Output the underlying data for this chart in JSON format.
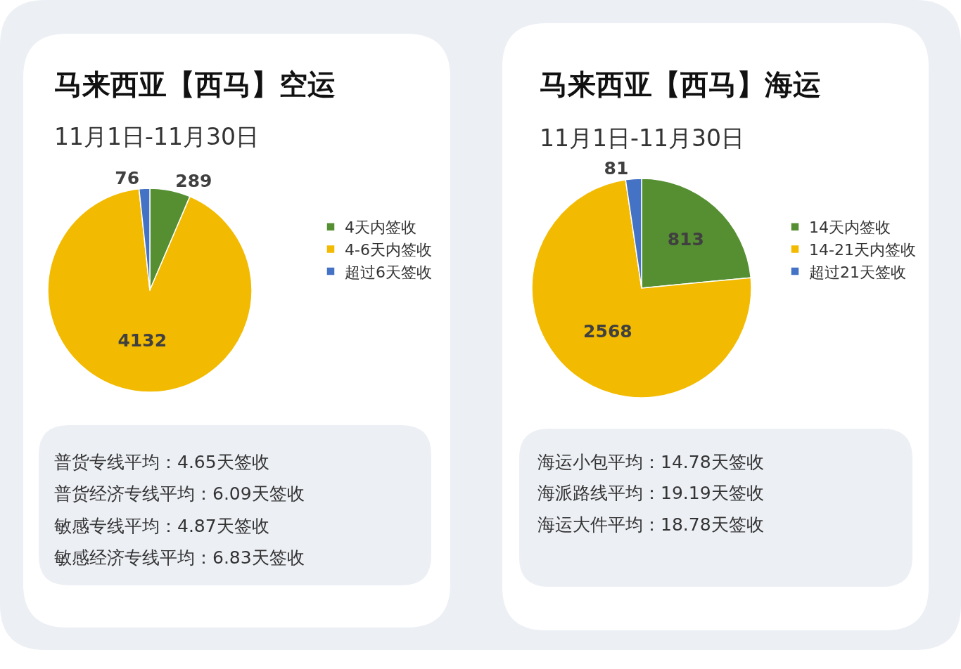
{
  "chart_data": [
    {
      "type": "pie",
      "title": "马来西亚【西马】空运",
      "subtitle": "11月1日-11月30日",
      "categories": [
        "4天内签收",
        "4-6天内签收",
        "超过6天签收"
      ],
      "values": [
        289,
        4132,
        76
      ],
      "colors": [
        "#568f32",
        "#f2ba00",
        "#4472c4"
      ],
      "data_labels": true,
      "legend": "right",
      "annotations": [
        "普货专线平均：4.65天签收",
        "普货经济专线平均：6.09天签收",
        "敏感专线平均：4.87天签收",
        "敏感经济专线平均：6.83天签收"
      ]
    },
    {
      "type": "pie",
      "title": "马来西亚【西马】海运",
      "subtitle": "11月1日-11月30日",
      "categories": [
        "14天内签收",
        "14-21天内签收",
        "超过21天签收"
      ],
      "values": [
        813,
        2568,
        81
      ],
      "colors": [
        "#568f32",
        "#f2ba00",
        "#4472c4"
      ],
      "data_labels": true,
      "legend": "right",
      "annotations": [
        "海运小包平均：14.78天签收",
        "海派路线平均：19.19天签收",
        "海运大件平均：18.78天签收"
      ]
    }
  ]
}
